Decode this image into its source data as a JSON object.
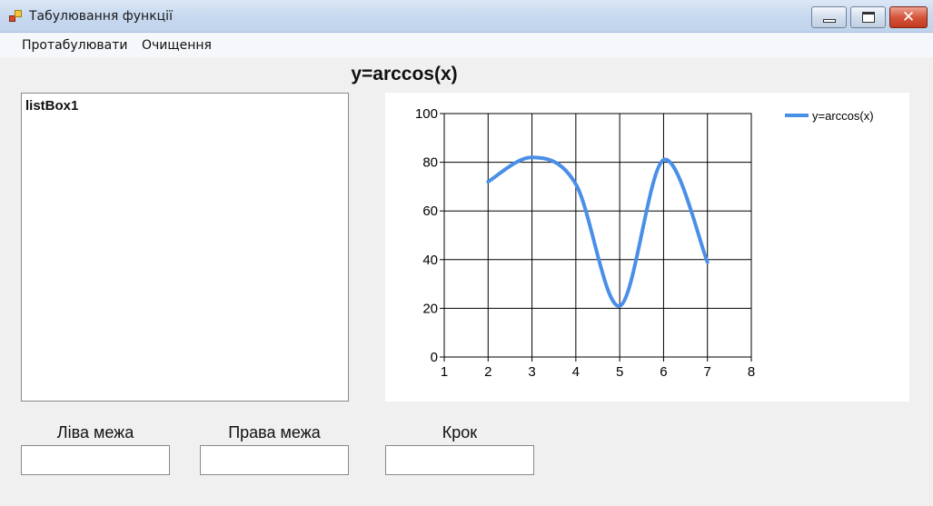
{
  "window": {
    "title": "Табулювання функції",
    "close_glyph": "✕"
  },
  "menu": {
    "items": [
      {
        "label": "Протабулювати"
      },
      {
        "label": "Очищення"
      }
    ]
  },
  "chart_title": "y=arccos(x)",
  "listbox": {
    "items": [
      "listBox1"
    ]
  },
  "fields": {
    "left_label": "Ліва межа",
    "left_value": "",
    "right_label": "Права межа",
    "right_value": "",
    "step_label": "Крок",
    "step_value": ""
  },
  "chart_data": {
    "type": "line",
    "xlim": [
      1,
      8
    ],
    "ylim": [
      0,
      100
    ],
    "x_ticks": [
      1,
      2,
      3,
      4,
      5,
      6,
      7,
      8
    ],
    "y_ticks": [
      0,
      20,
      40,
      60,
      80,
      100
    ],
    "grid": true,
    "legend_position": "top-right",
    "series": [
      {
        "name": "y=arccos(x)",
        "color": "#4a8fe7",
        "x": [
          2,
          3,
          4,
          5,
          6,
          7
        ],
        "y": [
          72,
          82,
          71,
          21,
          81,
          39
        ]
      }
    ]
  }
}
